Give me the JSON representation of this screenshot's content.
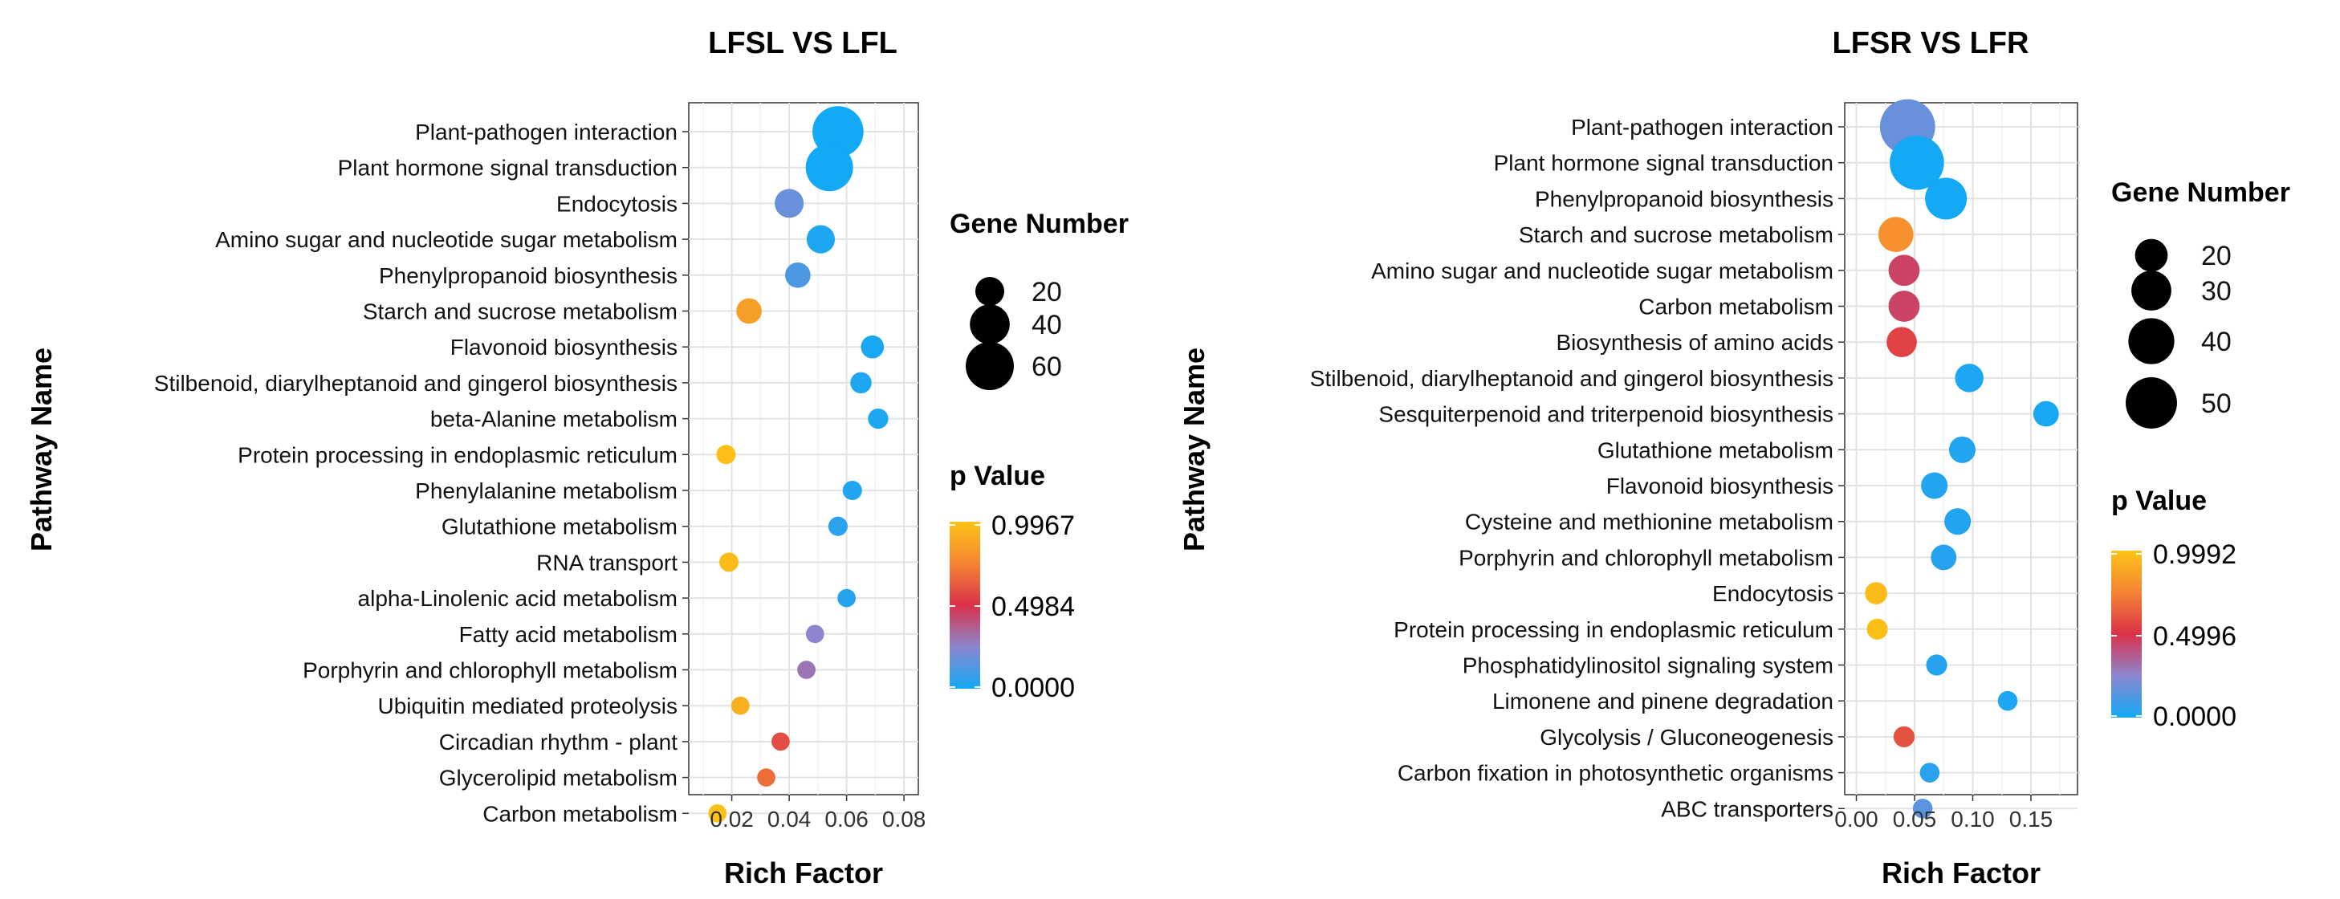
{
  "chart_data": [
    {
      "type": "scatter",
      "title": "LFSL VS LFL",
      "xlabel": "Rich Factor",
      "ylabel": "Pathway Name",
      "xlim": [
        0.005,
        0.085
      ],
      "xticks": [
        0.02,
        0.04,
        0.06,
        0.08
      ],
      "xtick_labels": [
        "0.02",
        "0.04",
        "0.06",
        "0.08"
      ],
      "grid": true,
      "size_legend": {
        "title": "Gene Number",
        "entries": [
          {
            "value": 20,
            "label": "20"
          },
          {
            "value": 40,
            "label": "40"
          },
          {
            "value": 60,
            "label": "60"
          }
        ]
      },
      "color_legend": {
        "title": "p Value",
        "min": 0.0,
        "mid": 0.4984,
        "max": 0.9967,
        "labels": [
          "0.9967",
          "0.4984",
          "0.0000"
        ]
      },
      "colors": {
        "low": "#13a9f5",
        "lowmid": "#8b86cf",
        "mid": "#db3149",
        "high": "#fcc416"
      },
      "points": [
        {
          "pathway": "Plant-pathogen interaction",
          "rich_factor": 0.057,
          "gene_number": 68,
          "p_value": 0.0
        },
        {
          "pathway": "Plant hormone signal transduction",
          "rich_factor": 0.054,
          "gene_number": 58,
          "p_value": 0.0
        },
        {
          "pathway": "Endocytosis",
          "rich_factor": 0.04,
          "gene_number": 20,
          "p_value": 0.18
        },
        {
          "pathway": "Amino sugar and nucleotide sugar metabolism",
          "rich_factor": 0.051,
          "gene_number": 19,
          "p_value": 0.02
        },
        {
          "pathway": "Phenylpropanoid biosynthesis",
          "rich_factor": 0.043,
          "gene_number": 15,
          "p_value": 0.12
        },
        {
          "pathway": "Starch and sucrose metabolism",
          "rich_factor": 0.026,
          "gene_number": 15,
          "p_value": 0.85
        },
        {
          "pathway": "Flavonoid biosynthesis",
          "rich_factor": 0.069,
          "gene_number": 12,
          "p_value": 0.01
        },
        {
          "pathway": "Stilbenoid, diarylheptanoid and gingerol biosynthesis",
          "rich_factor": 0.065,
          "gene_number": 10,
          "p_value": 0.02
        },
        {
          "pathway": "beta-Alanine metabolism",
          "rich_factor": 0.071,
          "gene_number": 9,
          "p_value": 0.02
        },
        {
          "pathway": "Protein processing in endoplasmic reticulum",
          "rich_factor": 0.018,
          "gene_number": 8,
          "p_value": 0.98
        },
        {
          "pathway": "Phenylalanine metabolism",
          "rich_factor": 0.062,
          "gene_number": 8,
          "p_value": 0.03
        },
        {
          "pathway": "Glutathione metabolism",
          "rich_factor": 0.057,
          "gene_number": 8,
          "p_value": 0.05
        },
        {
          "pathway": "RNA transport",
          "rich_factor": 0.019,
          "gene_number": 8,
          "p_value": 0.97
        },
        {
          "pathway": "alpha-Linolenic acid metabolism",
          "rich_factor": 0.06,
          "gene_number": 7,
          "p_value": 0.04
        },
        {
          "pathway": "Fatty acid metabolism",
          "rich_factor": 0.049,
          "gene_number": 7,
          "p_value": 0.25
        },
        {
          "pathway": "Porphyrin and chlorophyll metabolism",
          "rich_factor": 0.046,
          "gene_number": 7,
          "p_value": 0.3
        },
        {
          "pathway": "Ubiquitin mediated proteolysis",
          "rich_factor": 0.023,
          "gene_number": 7,
          "p_value": 0.92
        },
        {
          "pathway": "Circadian rhythm - plant",
          "rich_factor": 0.037,
          "gene_number": 7,
          "p_value": 0.58
        },
        {
          "pathway": "Glycerolipid metabolism",
          "rich_factor": 0.032,
          "gene_number": 7,
          "p_value": 0.68
        },
        {
          "pathway": "Carbon metabolism",
          "rich_factor": 0.015,
          "gene_number": 7,
          "p_value": 0.99
        }
      ]
    },
    {
      "type": "scatter",
      "title": "LFSR VS LFR",
      "xlabel": "Rich Factor",
      "ylabel": "Pathway Name",
      "xlim": [
        -0.01,
        0.19
      ],
      "xticks": [
        0.0,
        0.05,
        0.1,
        0.15
      ],
      "xtick_labels": [
        "0.00",
        "0.05",
        "0.10",
        "0.15"
      ],
      "grid": true,
      "size_legend": {
        "title": "Gene Number",
        "entries": [
          {
            "value": 20,
            "label": "20"
          },
          {
            "value": 30,
            "label": "30"
          },
          {
            "value": 40,
            "label": "40"
          },
          {
            "value": 50,
            "label": "50"
          }
        ]
      },
      "color_legend": {
        "title": "p Value",
        "min": 0.0,
        "mid": 0.4996,
        "max": 0.9992,
        "labels": [
          "0.9992",
          "0.4996",
          "0.0000"
        ]
      },
      "colors": {
        "low": "#13a9f5",
        "lowmid": "#8b86cf",
        "mid": "#db3149",
        "high": "#fcc416"
      },
      "points": [
        {
          "pathway": "Plant-pathogen interaction",
          "rich_factor": 0.044,
          "gene_number": 58,
          "p_value": 0.18
        },
        {
          "pathway": "Plant hormone signal transduction",
          "rich_factor": 0.052,
          "gene_number": 56,
          "p_value": 0.0
        },
        {
          "pathway": "Phenylpropanoid biosynthesis",
          "rich_factor": 0.077,
          "gene_number": 33,
          "p_value": 0.0
        },
        {
          "pathway": "Starch and sucrose metabolism",
          "rich_factor": 0.034,
          "gene_number": 23,
          "p_value": 0.8
        },
        {
          "pathway": "Amino sugar and nucleotide sugar metabolism",
          "rich_factor": 0.041,
          "gene_number": 18,
          "p_value": 0.45
        },
        {
          "pathway": "Carbon metabolism",
          "rich_factor": 0.041,
          "gene_number": 18,
          "p_value": 0.45
        },
        {
          "pathway": "Biosynthesis of amino acids",
          "rich_factor": 0.039,
          "gene_number": 17,
          "p_value": 0.55
        },
        {
          "pathway": "Stilbenoid, diarylheptanoid and gingerol biosynthesis",
          "rich_factor": 0.097,
          "gene_number": 15,
          "p_value": 0.02
        },
        {
          "pathway": "Sesquiterpenoid and triterpenoid biosynthesis",
          "rich_factor": 0.163,
          "gene_number": 12,
          "p_value": 0.01
        },
        {
          "pathway": "Glutathione metabolism",
          "rich_factor": 0.091,
          "gene_number": 13,
          "p_value": 0.03
        },
        {
          "pathway": "Flavonoid biosynthesis",
          "rich_factor": 0.067,
          "gene_number": 13,
          "p_value": 0.03
        },
        {
          "pathway": "Cysteine and methionine metabolism",
          "rich_factor": 0.087,
          "gene_number": 13,
          "p_value": 0.03
        },
        {
          "pathway": "Porphyrin and chlorophyll metabolism",
          "rich_factor": 0.075,
          "gene_number": 12,
          "p_value": 0.04
        },
        {
          "pathway": "Endocytosis",
          "rich_factor": 0.017,
          "gene_number": 9,
          "p_value": 0.97
        },
        {
          "pathway": "Protein processing in endoplasmic reticulum",
          "rich_factor": 0.018,
          "gene_number": 8,
          "p_value": 0.98
        },
        {
          "pathway": "Phosphatidylinositol signaling system",
          "rich_factor": 0.069,
          "gene_number": 8,
          "p_value": 0.04
        },
        {
          "pathway": "Limonene and pinene degradation",
          "rich_factor": 0.13,
          "gene_number": 7,
          "p_value": 0.02
        },
        {
          "pathway": "Glycolysis / Gluconeogenesis",
          "rich_factor": 0.041,
          "gene_number": 8,
          "p_value": 0.6
        },
        {
          "pathway": "Carbon fixation in photosynthetic organisms",
          "rich_factor": 0.063,
          "gene_number": 7,
          "p_value": 0.05
        },
        {
          "pathway": "ABC transporters",
          "rich_factor": 0.057,
          "gene_number": 7,
          "p_value": 0.15
        }
      ]
    }
  ]
}
